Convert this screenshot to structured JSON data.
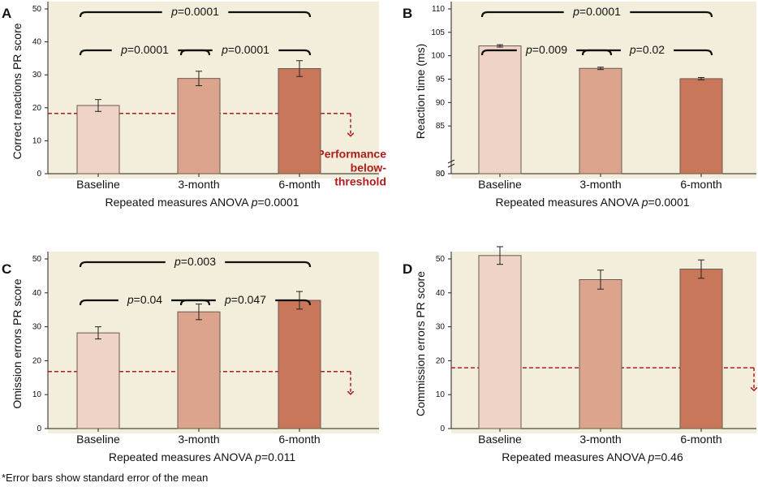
{
  "footnote": "*Error bars show standard error of the mean",
  "colors": {
    "panel_bg": "#f3eedb",
    "bar_baseline": "#eed3c6",
    "bar_3month": "#dca48c",
    "bar_6month": "#c9775a",
    "threshold": "#b01c1c",
    "text": "#111111"
  },
  "chart_data": [
    {
      "panel": "A",
      "type": "bar",
      "categories": [
        "Baseline",
        "3-month",
        "6-month"
      ],
      "values": [
        20.7,
        28.9,
        31.9
      ],
      "errors": [
        1.8,
        2.2,
        2.4
      ],
      "ylabel": "Correct reactions PR score",
      "xlabel": "Repeated measures ANOVA p=0.0001",
      "ylim": [
        0,
        50
      ],
      "yticks": [
        0,
        10,
        20,
        30,
        40,
        50
      ],
      "threshold": 18.3,
      "threshold_label": [
        "Performance",
        "below-",
        "threshold"
      ],
      "comparisons": [
        {
          "from": 0,
          "to": 1,
          "label": "p=0.0001",
          "level": 1
        },
        {
          "from": 1,
          "to": 2,
          "label": "p=0.0001",
          "level": 1
        },
        {
          "from": 0,
          "to": 2,
          "label": "p=0.0001",
          "level": 2
        }
      ]
    },
    {
      "panel": "B",
      "type": "bar",
      "categories": [
        "Baseline",
        "3-month",
        "6-month"
      ],
      "values": [
        102.1,
        97.3,
        95.1
      ],
      "errors": [
        0.25,
        0.25,
        0.25
      ],
      "ylabel": "Reaction time (ms)",
      "xlabel": "Repeated measures ANOVA p=0.0001",
      "ylim": [
        0,
        110
      ],
      "yticks": [
        0,
        80,
        85,
        90,
        95,
        100,
        105,
        110
      ],
      "broken_axis": true,
      "comparisons": [
        {
          "from": 0,
          "to": 1,
          "label": "p=0.009",
          "level": 1
        },
        {
          "from": 1,
          "to": 2,
          "label": "p=0.02",
          "level": 1
        },
        {
          "from": 0,
          "to": 2,
          "label": "p=0.0001",
          "level": 2
        }
      ]
    },
    {
      "panel": "C",
      "type": "bar",
      "categories": [
        "Baseline",
        "3-month",
        "6-month"
      ],
      "values": [
        28.2,
        34.4,
        37.8
      ],
      "errors": [
        1.8,
        2.3,
        2.6
      ],
      "ylabel": "Omission errors PR score",
      "xlabel": "Repeated measures ANOVA p=0.011",
      "ylim": [
        0,
        50
      ],
      "yticks": [
        0,
        10,
        20,
        30,
        40,
        50
      ],
      "threshold": 16.8,
      "comparisons": [
        {
          "from": 0,
          "to": 1,
          "label": "p=0.04",
          "level": 1
        },
        {
          "from": 1,
          "to": 2,
          "label": "p=0.047",
          "level": 1
        },
        {
          "from": 0,
          "to": 2,
          "label": "p=0.003",
          "level": 2
        }
      ]
    },
    {
      "panel": "D",
      "type": "bar",
      "categories": [
        "Baseline",
        "3-month",
        "6-month"
      ],
      "values": [
        51.0,
        43.9,
        47.0
      ],
      "errors": [
        2.6,
        2.8,
        2.7
      ],
      "ylabel": "Commission errors PR score",
      "xlabel": "Repeated measures ANOVA p=0.46",
      "ylim": [
        0,
        50
      ],
      "yticks": [
        0,
        10,
        20,
        30,
        40,
        50
      ],
      "threshold": 17.9,
      "comparisons": []
    }
  ]
}
